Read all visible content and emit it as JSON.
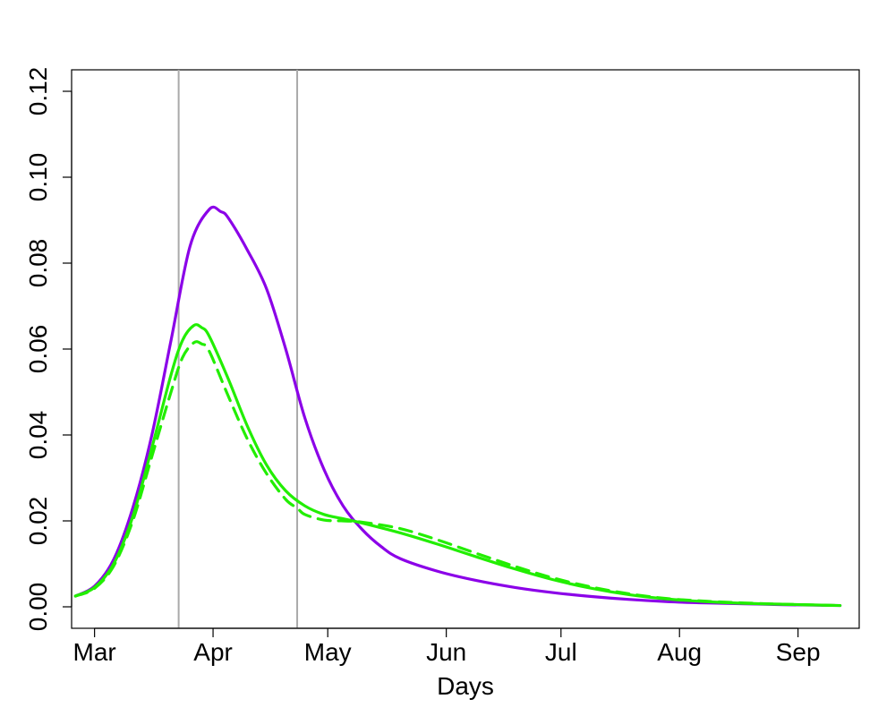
{
  "chart_data": {
    "type": "line",
    "title": "",
    "xlabel": "Days",
    "ylabel": "",
    "x_ticks": [
      {
        "label": "Mar",
        "value": 0
      },
      {
        "label": "Apr",
        "value": 31
      },
      {
        "label": "May",
        "value": 61
      },
      {
        "label": "Jun",
        "value": 92
      },
      {
        "label": "Jul",
        "value": 122
      },
      {
        "label": "Aug",
        "value": 153
      },
      {
        "label": "Sep",
        "value": 184
      }
    ],
    "y_ticks": [
      "0.00",
      "0.02",
      "0.04",
      "0.06",
      "0.08",
      "0.10",
      "0.12"
    ],
    "xlim": [
      -6,
      200
    ],
    "ylim": [
      -0.005,
      0.125
    ],
    "grid": false,
    "vertical_lines": [
      22,
      53
    ],
    "series": [
      {
        "color": "#8B00E8",
        "style": "solid",
        "x": [
          -5,
          0,
          5,
          10,
          15,
          20,
          25,
          30,
          33,
          35,
          40,
          45,
          50,
          55,
          60,
          65,
          70,
          75,
          80,
          90,
          100,
          110,
          120,
          130,
          140,
          150,
          160,
          170,
          180,
          195
        ],
        "y": [
          0.0025,
          0.0048,
          0.011,
          0.023,
          0.04,
          0.062,
          0.084,
          0.0925,
          0.092,
          0.0905,
          0.083,
          0.074,
          0.06,
          0.044,
          0.032,
          0.0235,
          0.018,
          0.014,
          0.0112,
          0.0082,
          0.0061,
          0.0045,
          0.0033,
          0.0024,
          0.0017,
          0.0012,
          0.0009,
          0.0007,
          0.0005,
          0.0003
        ]
      },
      {
        "color": "#22EE00",
        "style": "solid",
        "x": [
          -5,
          0,
          5,
          10,
          15,
          20,
          23,
          26,
          28,
          30,
          35,
          40,
          45,
          50,
          55,
          60,
          65,
          70,
          80,
          90,
          100,
          110,
          120,
          130,
          140,
          150,
          160,
          170,
          180,
          195
        ],
        "y": [
          0.0025,
          0.0045,
          0.01,
          0.021,
          0.037,
          0.054,
          0.062,
          0.0655,
          0.065,
          0.063,
          0.053,
          0.042,
          0.033,
          0.027,
          0.0235,
          0.0215,
          0.0205,
          0.0195,
          0.0172,
          0.0145,
          0.0116,
          0.0088,
          0.0063,
          0.0043,
          0.0028,
          0.0018,
          0.0012,
          0.0008,
          0.0006,
          0.0003
        ]
      },
      {
        "color": "#22EE00",
        "style": "dashed",
        "x": [
          -5,
          0,
          5,
          10,
          15,
          20,
          23,
          26,
          28,
          30,
          35,
          40,
          45,
          50,
          53,
          55,
          60,
          65,
          70,
          80,
          90,
          100,
          110,
          120,
          130,
          140,
          150,
          160,
          170,
          180,
          195
        ],
        "y": [
          0.0025,
          0.0043,
          0.0095,
          0.02,
          0.035,
          0.05,
          0.058,
          0.0615,
          0.0612,
          0.0595,
          0.049,
          0.039,
          0.031,
          0.025,
          0.023,
          0.0215,
          0.0202,
          0.02,
          0.0197,
          0.0182,
          0.0155,
          0.0124,
          0.0094,
          0.0067,
          0.0046,
          0.003,
          0.0019,
          0.0013,
          0.0009,
          0.0006,
          0.0003
        ]
      }
    ]
  }
}
